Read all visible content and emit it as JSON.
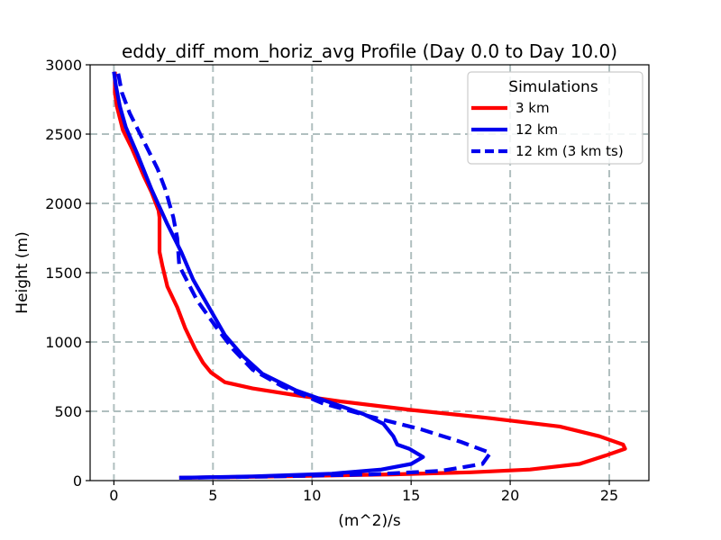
{
  "chart_data": {
    "type": "line",
    "title": "eddy_diff_mom_horiz_avg Profile (Day 0.0 to Day 10.0)",
    "xlabel": "(m^2)/s",
    "ylabel": "Height (m)",
    "xlim": [
      -1.2,
      27.0
    ],
    "ylim": [
      0,
      3000
    ],
    "xticks": [
      0,
      5,
      10,
      15,
      20,
      25
    ],
    "yticks": [
      0,
      500,
      1000,
      1500,
      2000,
      2500,
      3000
    ],
    "grid": true,
    "legend": {
      "title": "Simulations",
      "placement": "upper-right"
    },
    "series": [
      {
        "name": "3 km",
        "color": "#ff0000",
        "dash": "solid",
        "points": [
          [
            3.3,
            20
          ],
          [
            8,
            30
          ],
          [
            14,
            45
          ],
          [
            18,
            60
          ],
          [
            21,
            80
          ],
          [
            23.5,
            120
          ],
          [
            24.8,
            180
          ],
          [
            25.8,
            230
          ],
          [
            25.7,
            260
          ],
          [
            24.5,
            320
          ],
          [
            22.5,
            390
          ],
          [
            19,
            450
          ],
          [
            15,
            510
          ],
          [
            11.5,
            570
          ],
          [
            9,
            620
          ],
          [
            7,
            665
          ],
          [
            5.6,
            710
          ],
          [
            4.9,
            780
          ],
          [
            4.5,
            850
          ],
          [
            4.1,
            950
          ],
          [
            3.6,
            1100
          ],
          [
            3.2,
            1250
          ],
          [
            2.7,
            1400
          ],
          [
            2.45,
            1550
          ],
          [
            2.3,
            1650
          ],
          [
            2.3,
            1900
          ],
          [
            2.25,
            1950
          ],
          [
            1.9,
            2080
          ],
          [
            1.5,
            2200
          ],
          [
            0.9,
            2400
          ],
          [
            0.45,
            2530
          ],
          [
            0.15,
            2700
          ],
          [
            0.05,
            2800
          ],
          [
            0.05,
            2950
          ]
        ]
      },
      {
        "name": "12 km",
        "color": "#0000ee",
        "dash": "solid",
        "points": [
          [
            3.3,
            20
          ],
          [
            7,
            30
          ],
          [
            11,
            50
          ],
          [
            13.5,
            80
          ],
          [
            15,
            120
          ],
          [
            15.6,
            170
          ],
          [
            14.9,
            230
          ],
          [
            14.3,
            260
          ],
          [
            14.1,
            320
          ],
          [
            13.6,
            410
          ],
          [
            12.6,
            480
          ],
          [
            11,
            560
          ],
          [
            9.2,
            650
          ],
          [
            7.5,
            770
          ],
          [
            6.5,
            900
          ],
          [
            5.6,
            1050
          ],
          [
            4.8,
            1250
          ],
          [
            4.0,
            1450
          ],
          [
            3.4,
            1650
          ],
          [
            2.7,
            1850
          ],
          [
            1.9,
            2100
          ],
          [
            1.2,
            2350
          ],
          [
            0.6,
            2550
          ],
          [
            0.3,
            2700
          ],
          [
            0.1,
            2850
          ],
          [
            0.0,
            2950
          ]
        ]
      },
      {
        "name": "12 km (3 km ts)",
        "color": "#0000ee",
        "dash": "dashed",
        "points": [
          [
            3.3,
            20
          ],
          [
            8,
            30
          ],
          [
            13,
            45
          ],
          [
            16.5,
            70
          ],
          [
            18.6,
            120
          ],
          [
            19,
            200
          ],
          [
            17.5,
            280
          ],
          [
            15.5,
            370
          ],
          [
            13,
            460
          ],
          [
            10.5,
            560
          ],
          [
            8.5,
            680
          ],
          [
            7,
            800
          ],
          [
            6,
            950
          ],
          [
            5.2,
            1100
          ],
          [
            4.2,
            1300
          ],
          [
            3.3,
            1550
          ],
          [
            3.2,
            1750
          ],
          [
            3.0,
            1900
          ],
          [
            2.6,
            2100
          ],
          [
            2.2,
            2250
          ],
          [
            1.5,
            2450
          ],
          [
            0.8,
            2650
          ],
          [
            0.4,
            2800
          ],
          [
            0.2,
            2950
          ]
        ]
      }
    ]
  }
}
